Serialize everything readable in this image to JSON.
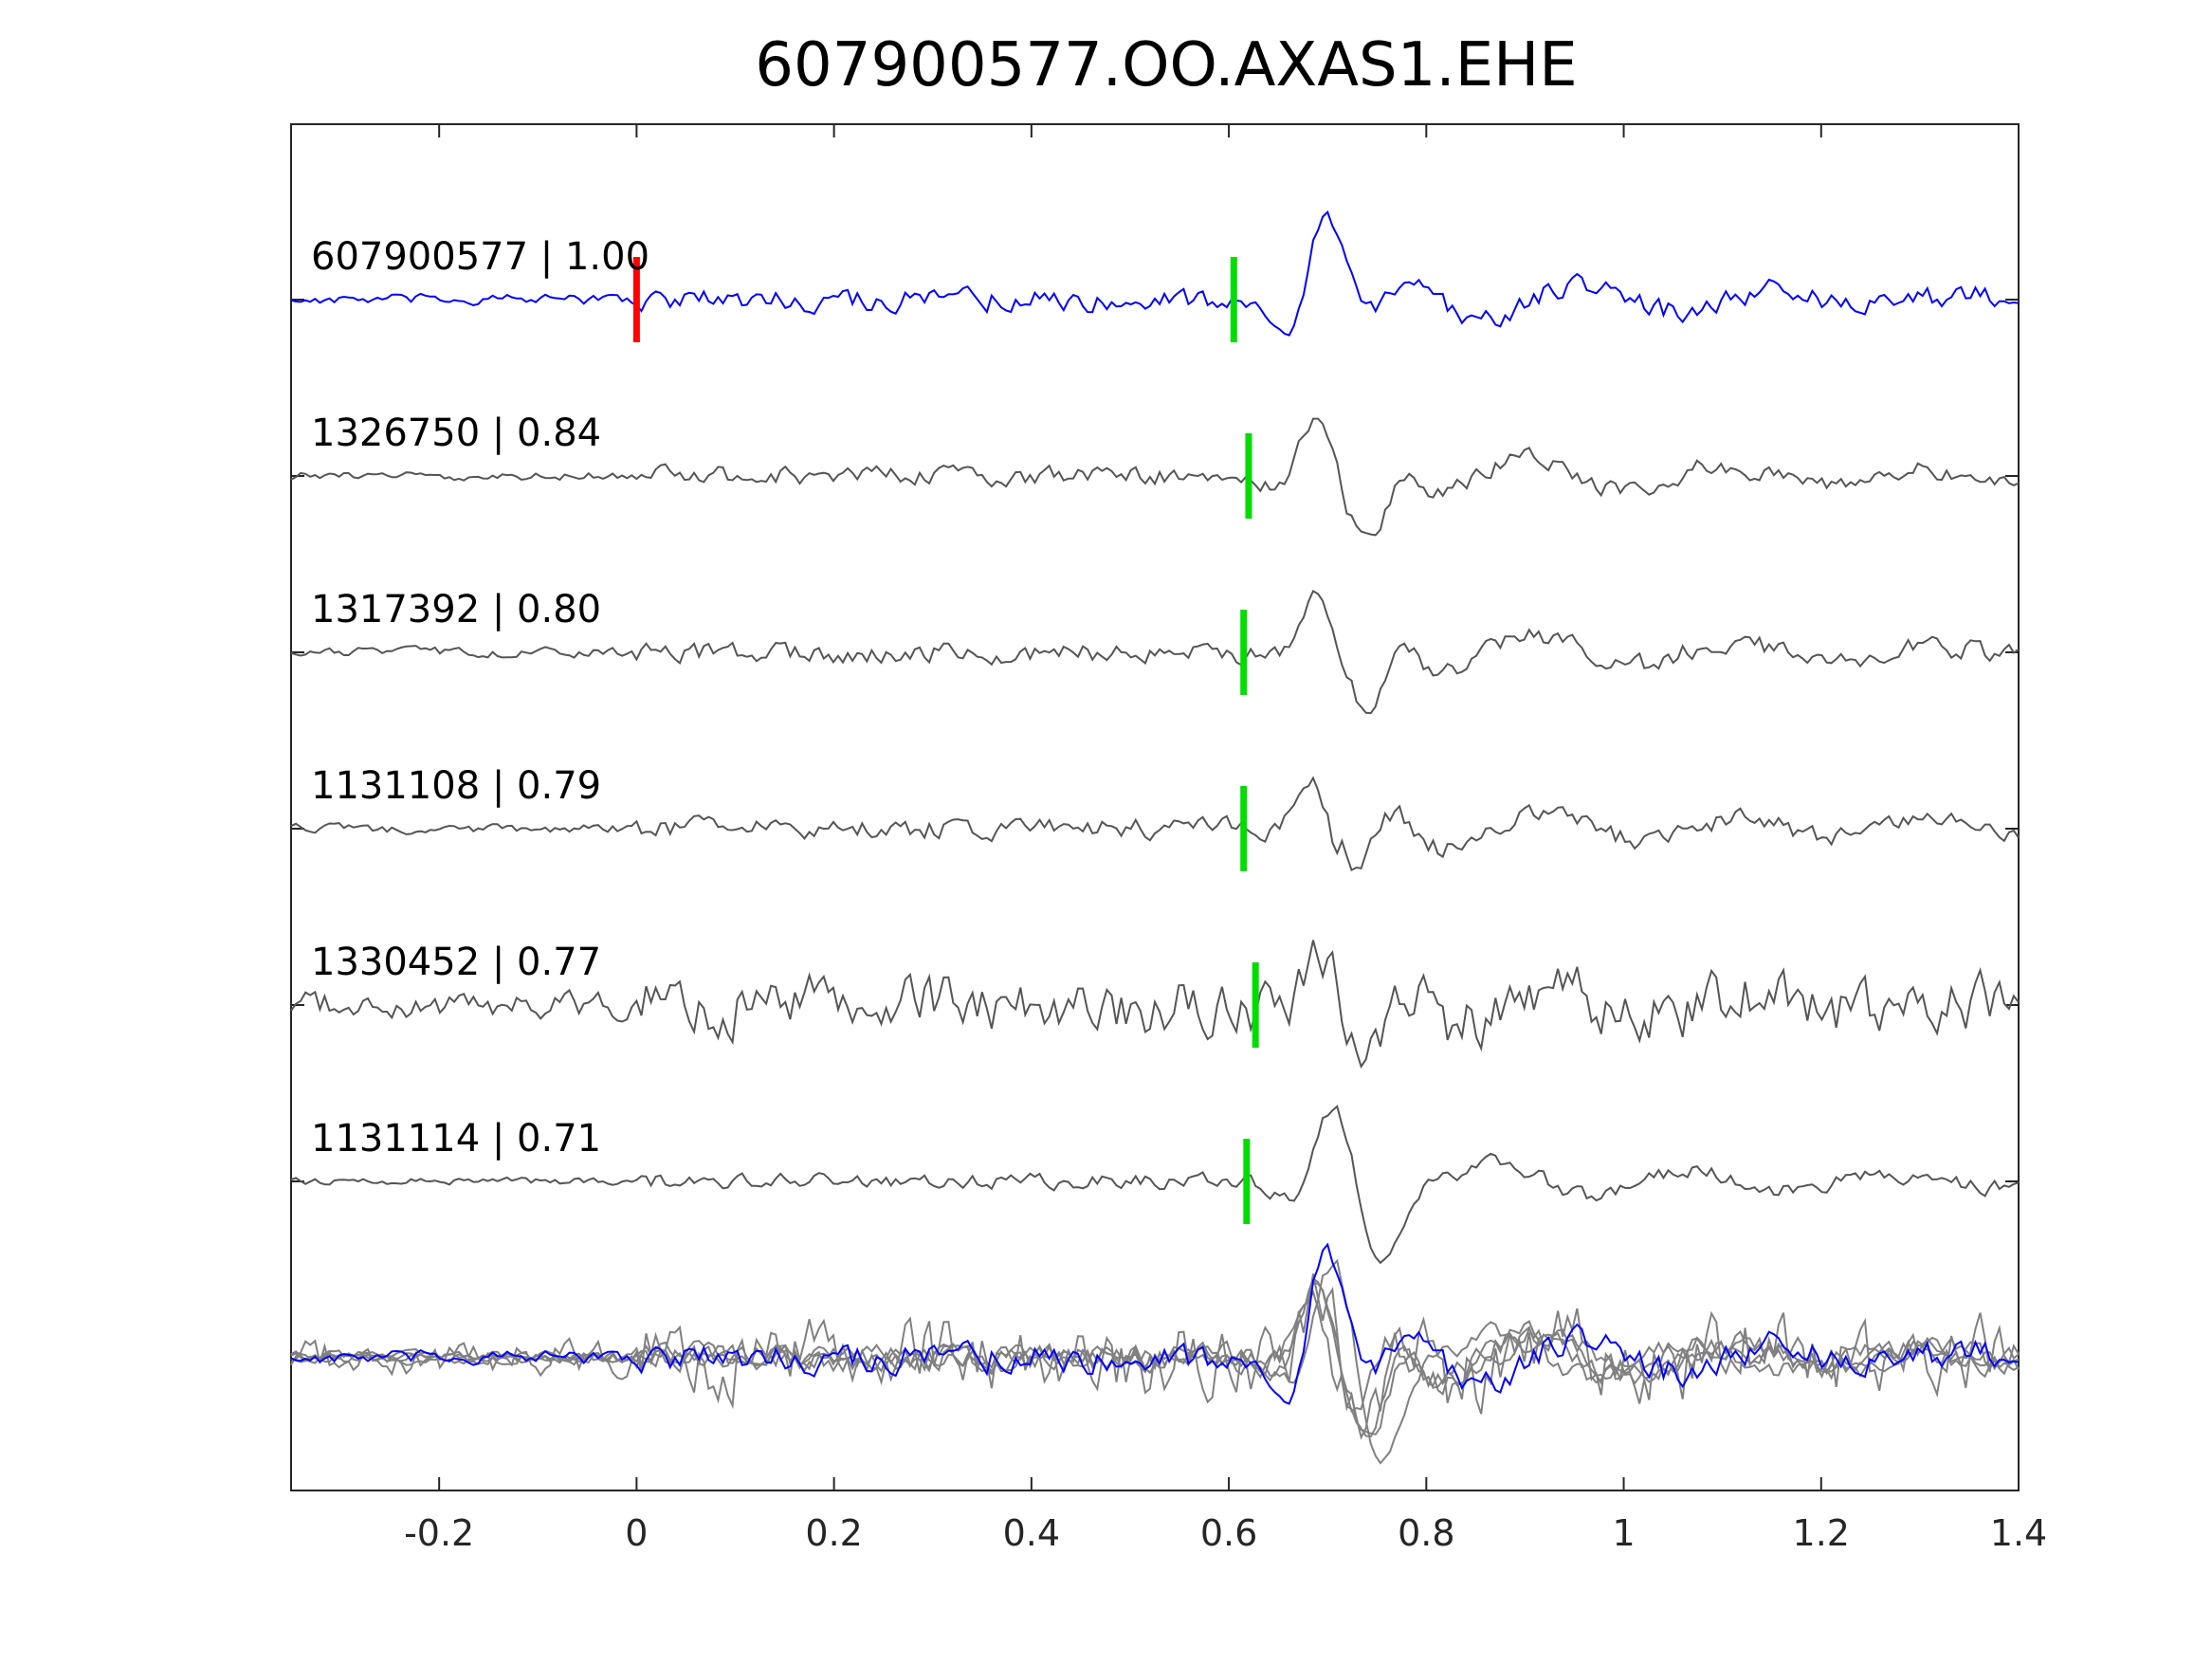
{
  "chart_data": {
    "type": "line",
    "title": "607900577.OO.AXAS1.EHE",
    "xlabel": "",
    "ylabel": "",
    "xlim": [
      -0.35,
      1.4
    ],
    "x_ticks": [
      -0.2,
      0,
      0.2,
      0.4,
      0.6,
      0.8,
      1,
      1.2,
      1.4
    ],
    "x_tick_labels": [
      "-0.2",
      "0",
      "0.2",
      "0.4",
      "0.6",
      "0.8",
      "1",
      "1.2",
      "1.4"
    ],
    "grid": false,
    "colors": {
      "template": "#0000ff",
      "match": "#555555",
      "overlay_match": "#808080",
      "template_pick": "#ff0000",
      "match_pick": "#00dd00",
      "axes": "#262626"
    },
    "template_pick_time": 0.0,
    "series": [
      {
        "id": "607900577",
        "label": "607900577 | 1.00",
        "correlation": 1.0,
        "color": "#0000ff",
        "pick_time": 0.605,
        "pick_color": "#00dd00",
        "noise_amp": 0.22,
        "signal_amp": 1.0,
        "signal_center": 0.7,
        "seed": 3
      },
      {
        "id": "1326750",
        "label": "1326750 | 0.84",
        "correlation": 0.84,
        "color": "#555555",
        "pick_time": 0.62,
        "pick_color": "#00dd00",
        "noise_amp": 0.18,
        "signal_amp": 1.0,
        "signal_center": 0.72,
        "seed": 11
      },
      {
        "id": "1317392",
        "label": "1317392 | 0.80",
        "correlation": 0.8,
        "color": "#555555",
        "pick_time": 0.615,
        "pick_color": "#00dd00",
        "noise_amp": 0.2,
        "signal_amp": 1.0,
        "signal_center": 0.72,
        "seed": 17
      },
      {
        "id": "1131108",
        "label": "1131108 | 0.79",
        "correlation": 0.79,
        "color": "#555555",
        "pick_time": 0.615,
        "pick_color": "#00dd00",
        "noise_amp": 0.2,
        "signal_amp": 0.9,
        "signal_center": 0.71,
        "seed": 23
      },
      {
        "id": "1330452",
        "label": "1330452 | 0.77",
        "correlation": 0.77,
        "color": "#555555",
        "pick_time": 0.627,
        "pick_color": "#00dd00",
        "noise_amp": 0.55,
        "signal_amp": 0.8,
        "signal_center": 0.72,
        "seed": 29
      },
      {
        "id": "1131114",
        "label": "1131114 | 0.71",
        "correlation": 0.71,
        "color": "#555555",
        "pick_time": 0.618,
        "pick_color": "#00dd00",
        "noise_amp": 0.15,
        "signal_amp": 1.0,
        "signal_center": 0.72,
        "seed": 37
      }
    ],
    "overlay": "all traces superimposed at bottom"
  }
}
